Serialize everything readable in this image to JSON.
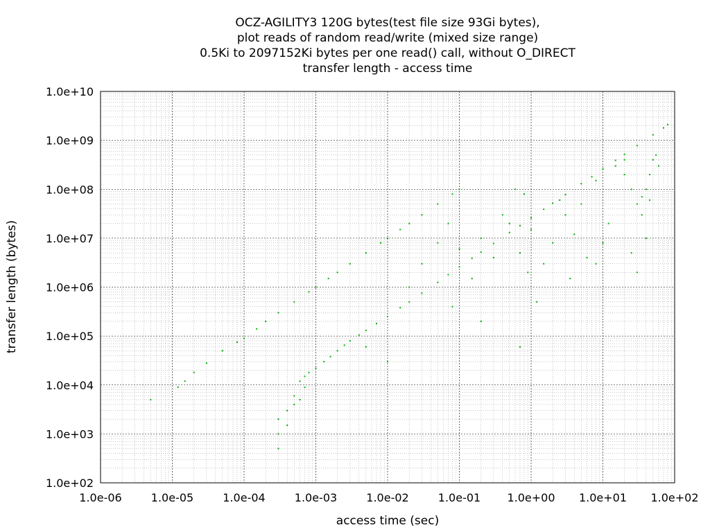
{
  "chart_data": {
    "type": "scatter",
    "title_lines": [
      "OCZ-AGILITY3 120G bytes(test file size 93Gi bytes),",
      "plot reads of random read/write (mixed size range)",
      "0.5Ki to 2097152Ki bytes per one read() call, without O_DIRECT",
      "transfer length - access time"
    ],
    "xlabel": "access time (sec)",
    "ylabel": "transfer length (bytes)",
    "x_scale": "log",
    "y_scale": "log",
    "xlim": [
      1e-06,
      100
    ],
    "ylim": [
      100,
      10000000000.0
    ],
    "x_ticks": [
      "1.0e-06",
      "1.0e-05",
      "1.0e-04",
      "1.0e-03",
      "1.0e-02",
      "1.0e-01",
      "1.0e+00",
      "1.0e+01",
      "1.0e+02"
    ],
    "y_ticks": [
      "1.0e+02",
      "1.0e+03",
      "1.0e+04",
      "1.0e+05",
      "1.0e+06",
      "1.0e+07",
      "1.0e+08",
      "1.0e+09",
      "1.0e+10"
    ],
    "grid": true,
    "point_color": "#00b000",
    "series": [
      {
        "values": [
          [
            0.0006,
            12000
          ],
          [
            0.0007,
            15000
          ],
          [
            0.0008,
            18000
          ],
          [
            0.001,
            22000
          ],
          [
            0.0013,
            30000
          ],
          [
            0.0016,
            38000
          ],
          [
            0.002,
            50000
          ],
          [
            0.0025,
            65000
          ],
          [
            0.003,
            80000
          ],
          [
            0.004,
            105000
          ],
          [
            0.005,
            130000
          ],
          [
            0.007,
            180000
          ],
          [
            0.01,
            250000
          ],
          [
            0.015,
            380000
          ],
          [
            0.02,
            500000
          ],
          [
            0.03,
            750000
          ],
          [
            0.05,
            1250000
          ],
          [
            0.07,
            1800000
          ],
          [
            0.1,
            2600000
          ],
          [
            0.15,
            3900000
          ],
          [
            0.2,
            5200000
          ],
          [
            0.3,
            7800000
          ],
          [
            0.5,
            13000000
          ],
          [
            0.7,
            18000000
          ],
          [
            1.0,
            26000000
          ],
          [
            1.5,
            39000000
          ],
          [
            2.0,
            52000000
          ],
          [
            3.0,
            78000000
          ],
          [
            5.0,
            130000000
          ],
          [
            7.0,
            180000000
          ],
          [
            10.0,
            260000000
          ],
          [
            15.0,
            390000000
          ],
          [
            20.0,
            520000000
          ],
          [
            30.0,
            780000000
          ],
          [
            50.0,
            1300000000
          ],
          [
            70.0,
            1800000000
          ],
          [
            80.0,
            2100000000
          ]
        ]
      },
      {
        "values": [
          [
            5e-06,
            5000
          ],
          [
            1.2e-05,
            9000
          ],
          [
            1.5e-05,
            12000
          ],
          [
            2e-05,
            18000
          ],
          [
            3e-05,
            28000
          ],
          [
            5e-05,
            50000
          ],
          [
            8e-05,
            75000
          ],
          [
            0.0001,
            90000
          ],
          [
            0.00015,
            140000
          ],
          [
            0.0002,
            200000
          ],
          [
            0.0003,
            300000
          ],
          [
            0.0005,
            500000
          ],
          [
            0.0008,
            800000
          ],
          [
            0.001,
            1000000
          ],
          [
            0.0015,
            1500000
          ],
          [
            0.002,
            2000000
          ],
          [
            0.003,
            3000000
          ],
          [
            0.005,
            5000000
          ],
          [
            0.008,
            8000000
          ],
          [
            0.01,
            10000000
          ],
          [
            0.015,
            15000000
          ],
          [
            0.02,
            20000000
          ],
          [
            0.03,
            30000000
          ],
          [
            0.05,
            50000000
          ],
          [
            0.08,
            80000000
          ],
          [
            0.1,
            100000000
          ]
        ]
      },
      {
        "values": [
          [
            0.0003,
            500
          ],
          [
            0.0003,
            1000
          ],
          [
            0.0003,
            2000
          ],
          [
            0.0004,
            3000
          ],
          [
            0.0004,
            1500
          ],
          [
            0.0005,
            4000
          ],
          [
            0.0005,
            6000
          ],
          [
            0.0006,
            5000
          ],
          [
            0.0007,
            9000
          ]
        ]
      },
      {
        "values": [
          [
            15.0,
            300000000
          ],
          [
            20.0,
            200000000
          ],
          [
            25.0,
            100000000
          ],
          [
            30.0,
            50000000
          ],
          [
            35.0,
            30000000
          ],
          [
            40.0,
            100000000
          ],
          [
            45.0,
            200000000
          ],
          [
            50.0,
            400000000
          ],
          [
            55.0,
            500000000
          ],
          [
            40.0,
            10000000
          ],
          [
            30.0,
            2000000
          ],
          [
            12.0,
            20000000
          ],
          [
            25.0,
            5000000
          ],
          [
            35.0,
            70000000
          ],
          [
            20.0,
            400000000
          ],
          [
            45.0,
            60000000
          ],
          [
            60.0,
            300000000
          ],
          [
            10.0,
            8000000
          ],
          [
            8.0,
            3000000
          ]
        ]
      },
      {
        "values": [
          [
            0.05,
            8000000
          ],
          [
            0.07,
            20000000
          ],
          [
            0.1,
            6000000
          ],
          [
            0.2,
            10000000
          ],
          [
            0.3,
            4000000
          ],
          [
            0.5,
            20000000
          ],
          [
            0.7,
            5000000
          ],
          [
            1.0,
            15000000
          ],
          [
            1.5,
            3000000
          ],
          [
            2.0,
            8000000
          ],
          [
            3.0,
            30000000
          ],
          [
            4.0,
            12000000
          ],
          [
            5.0,
            50000000
          ],
          [
            6.0,
            4000000
          ],
          [
            0.03,
            3000000
          ],
          [
            0.02,
            1000000
          ],
          [
            0.15,
            1500000
          ],
          [
            0.4,
            30000000
          ],
          [
            2.5,
            60000000
          ],
          [
            8.0,
            150000000
          ],
          [
            0.8,
            80000000
          ],
          [
            0.6,
            100000000
          ],
          [
            0.01,
            30000
          ],
          [
            0.005,
            60000
          ],
          [
            0.7,
            60000
          ],
          [
            1.2,
            500000
          ],
          [
            0.2,
            200000
          ],
          [
            0.08,
            400000
          ],
          [
            0.9,
            2000000
          ],
          [
            3.5,
            1500000
          ]
        ]
      }
    ]
  }
}
